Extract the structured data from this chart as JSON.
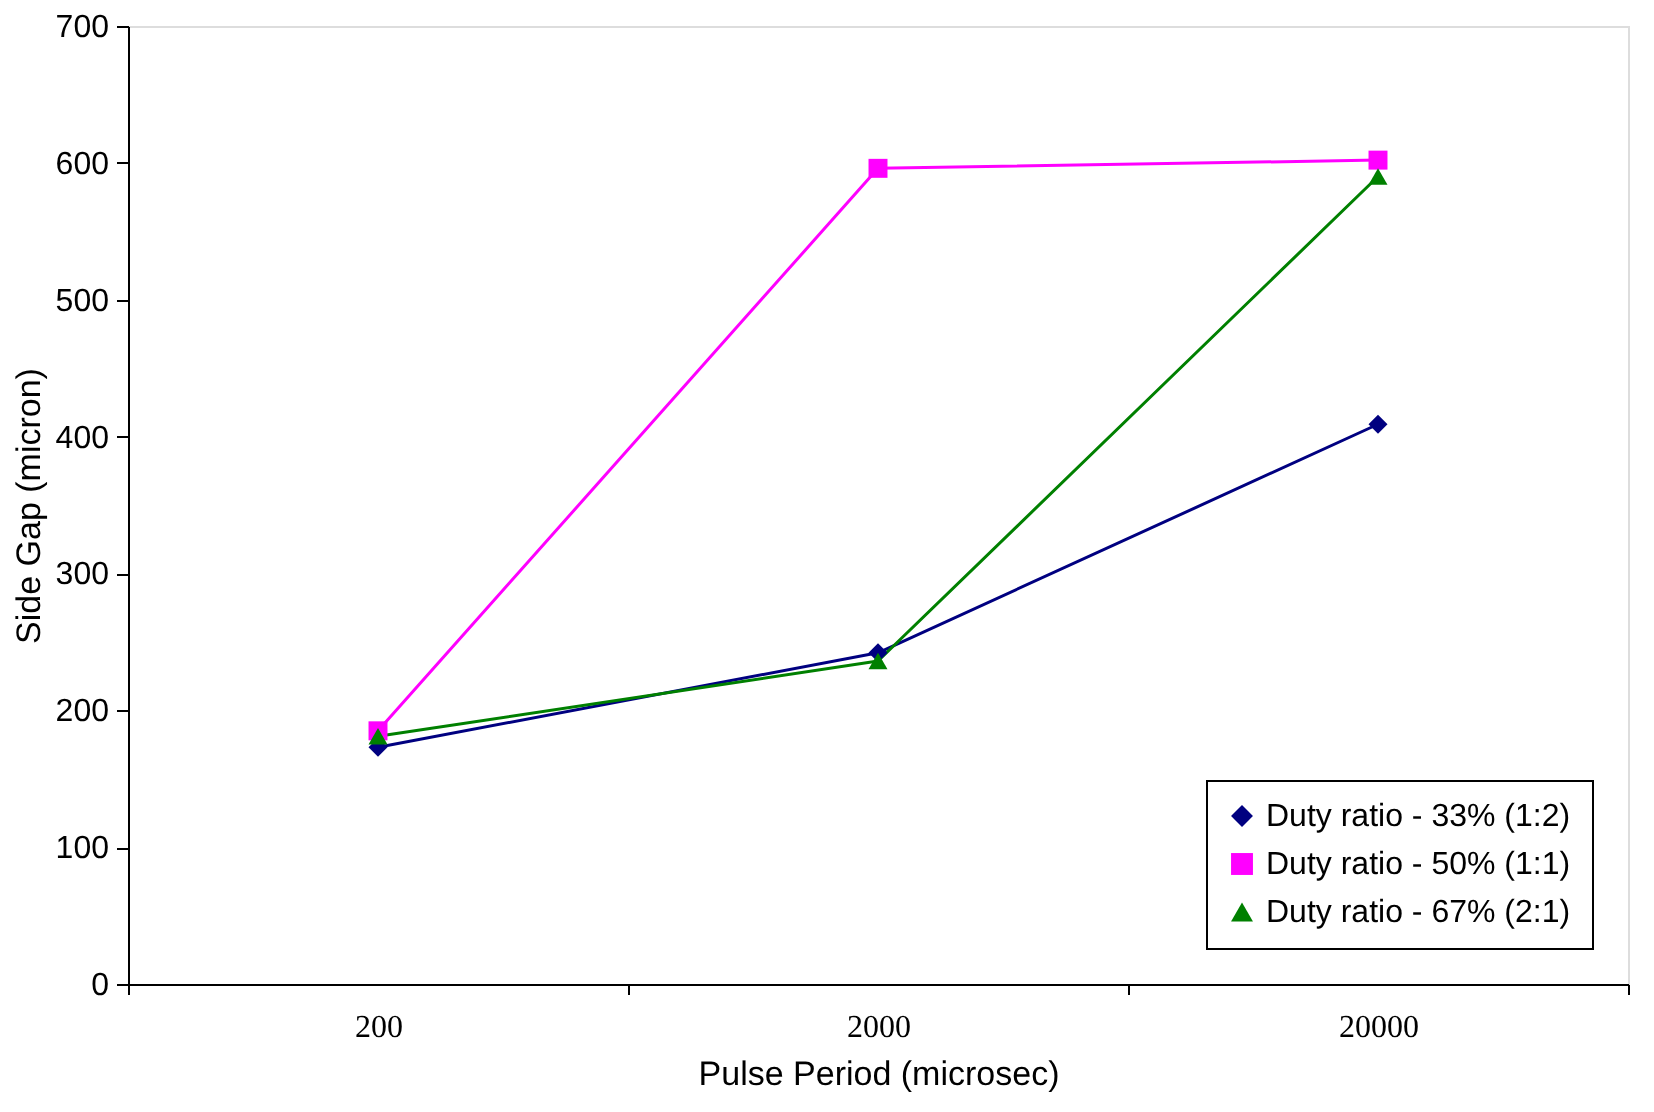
{
  "chart_data": {
    "type": "line",
    "xlabel": "Pulse Period (microsec)",
    "ylabel": "Side Gap (micron)",
    "categories": [
      "200",
      "2000",
      "20000"
    ],
    "series": [
      {
        "name": "Duty ratio - 33% (1:2)",
        "color": "#000080",
        "marker": "diamond",
        "values": [
          173,
          242,
          409
        ]
      },
      {
        "name": "Duty ratio - 50% (1:1)",
        "color": "#ff00ff",
        "marker": "square",
        "values": [
          185,
          596,
          602
        ]
      },
      {
        "name": "Duty ratio - 67% (2:1)",
        "color": "#008000",
        "marker": "triangle",
        "values": [
          181,
          236,
          590
        ]
      }
    ],
    "ylim": [
      0,
      700
    ],
    "yticks": [
      0,
      100,
      200,
      300,
      400,
      500,
      600,
      700
    ],
    "grid": false,
    "legend": "bottom right",
    "line_style": "solid"
  }
}
